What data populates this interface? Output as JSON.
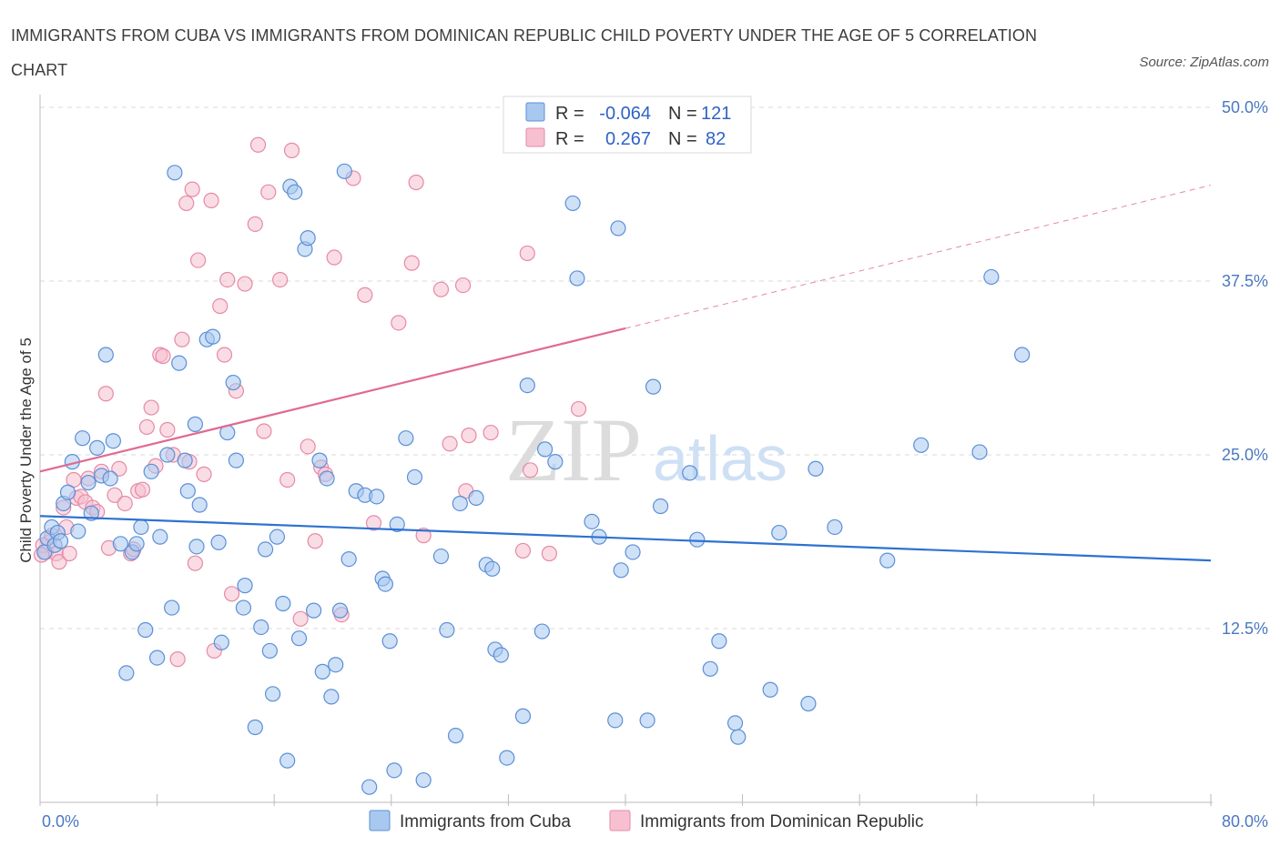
{
  "header": {
    "title": "IMMIGRANTS FROM CUBA VS IMMIGRANTS FROM DOMINICAN REPUBLIC CHILD POVERTY UNDER THE AGE OF 5 CORRELATION CHART",
    "source": "Source: ZipAtlas.com"
  },
  "watermark": {
    "part1": "ZIP",
    "part2": "atlas"
  },
  "colors": {
    "cuba_fill": "#a8c8f0",
    "cuba_stroke": "#5b8fd6",
    "cuba_line": "#2d72d2",
    "dr_fill": "#f6c0d0",
    "dr_stroke": "#e68aa6",
    "dr_line": "#e06a92",
    "grid": "#d9d9d9",
    "tick_text": "#4a78c2"
  },
  "legend": {
    "rows": [
      {
        "r_label": "R =",
        "r_value": "-0.064",
        "n_label": "N =",
        "n_value": "121"
      },
      {
        "r_label": "R =",
        "r_value": "0.267",
        "n_label": "N =",
        "n_value": "82"
      }
    ]
  },
  "bottom_legend": {
    "series1": "Immigrants from Cuba",
    "series2": "Immigrants from Dominican Republic"
  },
  "chart_data": {
    "type": "scatter",
    "ylabel": "Child Poverty Under the Age of 5",
    "xlim": [
      0,
      80
    ],
    "ylim": [
      0,
      50
    ],
    "y_ticks": [
      12.5,
      25.0,
      37.5,
      50.0
    ],
    "y_tick_labels": [
      "12.5%",
      "25.0%",
      "37.5%",
      "50.0%"
    ],
    "x_tick_labels": [
      "0.0%",
      "80.0%"
    ],
    "grid": true,
    "legend_position": "top-center",
    "series": [
      {
        "name": "Immigrants from Cuba",
        "r": -0.064,
        "n": 121,
        "trend": {
          "x": [
            0,
            80
          ],
          "y": [
            20.6,
            17.4
          ],
          "dashed_from": null
        },
        "points": [
          [
            0.3,
            18.0
          ],
          [
            0.5,
            19.0
          ],
          [
            0.8,
            19.8
          ],
          [
            1.0,
            18.5
          ],
          [
            1.2,
            19.4
          ],
          [
            1.4,
            18.8
          ],
          [
            1.6,
            21.5
          ],
          [
            1.9,
            22.3
          ],
          [
            2.2,
            24.5
          ],
          [
            2.6,
            19.5
          ],
          [
            2.9,
            26.2
          ],
          [
            3.3,
            23.0
          ],
          [
            3.5,
            20.8
          ],
          [
            3.9,
            25.5
          ],
          [
            4.2,
            23.5
          ],
          [
            4.5,
            32.2
          ],
          [
            4.8,
            23.3
          ],
          [
            5.0,
            26.0
          ],
          [
            5.5,
            18.6
          ],
          [
            5.9,
            9.3
          ],
          [
            6.3,
            18.0
          ],
          [
            6.6,
            18.6
          ],
          [
            6.9,
            19.8
          ],
          [
            7.2,
            12.4
          ],
          [
            7.6,
            23.8
          ],
          [
            8.0,
            10.4
          ],
          [
            8.2,
            19.1
          ],
          [
            8.7,
            25.0
          ],
          [
            9.0,
            14.0
          ],
          [
            9.2,
            45.3
          ],
          [
            9.5,
            31.6
          ],
          [
            9.9,
            24.6
          ],
          [
            10.1,
            22.4
          ],
          [
            10.6,
            27.2
          ],
          [
            10.9,
            21.4
          ],
          [
            10.7,
            18.4
          ],
          [
            11.4,
            33.3
          ],
          [
            11.8,
            33.5
          ],
          [
            12.2,
            18.7
          ],
          [
            12.4,
            11.5
          ],
          [
            12.8,
            26.6
          ],
          [
            13.2,
            30.2
          ],
          [
            13.4,
            24.6
          ],
          [
            13.9,
            14.0
          ],
          [
            14.0,
            15.6
          ],
          [
            14.7,
            5.4
          ],
          [
            15.1,
            12.6
          ],
          [
            15.4,
            18.2
          ],
          [
            15.7,
            10.9
          ],
          [
            15.9,
            7.8
          ],
          [
            16.2,
            19.1
          ],
          [
            16.6,
            14.3
          ],
          [
            16.9,
            3.0
          ],
          [
            17.1,
            44.3
          ],
          [
            17.4,
            43.9
          ],
          [
            17.7,
            11.8
          ],
          [
            18.1,
            39.8
          ],
          [
            18.3,
            40.6
          ],
          [
            18.7,
            13.8
          ],
          [
            19.1,
            24.6
          ],
          [
            19.3,
            9.4
          ],
          [
            19.6,
            23.3
          ],
          [
            19.9,
            7.6
          ],
          [
            20.2,
            9.9
          ],
          [
            20.5,
            13.8
          ],
          [
            20.8,
            45.4
          ],
          [
            21.1,
            17.5
          ],
          [
            21.6,
            22.4
          ],
          [
            22.2,
            22.1
          ],
          [
            22.5,
            1.1
          ],
          [
            23.0,
            22.0
          ],
          [
            23.4,
            16.1
          ],
          [
            23.6,
            15.7
          ],
          [
            23.9,
            11.6
          ],
          [
            24.2,
            2.3
          ],
          [
            24.4,
            20.0
          ],
          [
            25.0,
            26.2
          ],
          [
            25.6,
            23.4
          ],
          [
            26.2,
            1.6
          ],
          [
            27.4,
            17.7
          ],
          [
            27.8,
            12.4
          ],
          [
            28.4,
            4.8
          ],
          [
            28.7,
            21.5
          ],
          [
            29.8,
            21.9
          ],
          [
            30.5,
            17.1
          ],
          [
            30.9,
            16.8
          ],
          [
            31.1,
            11.0
          ],
          [
            31.5,
            10.6
          ],
          [
            31.9,
            3.2
          ],
          [
            33.0,
            6.2
          ],
          [
            33.3,
            30.0
          ],
          [
            34.3,
            12.3
          ],
          [
            34.5,
            25.4
          ],
          [
            35.2,
            24.5
          ],
          [
            36.4,
            43.1
          ],
          [
            36.7,
            37.7
          ],
          [
            37.7,
            20.2
          ],
          [
            38.2,
            19.1
          ],
          [
            39.3,
            5.9
          ],
          [
            39.5,
            41.3
          ],
          [
            39.7,
            16.7
          ],
          [
            40.5,
            18.0
          ],
          [
            41.5,
            5.9
          ],
          [
            41.9,
            29.9
          ],
          [
            42.4,
            21.3
          ],
          [
            44.4,
            23.7
          ],
          [
            44.9,
            18.9
          ],
          [
            45.8,
            9.6
          ],
          [
            46.4,
            11.6
          ],
          [
            47.5,
            5.7
          ],
          [
            47.7,
            4.7
          ],
          [
            49.9,
            8.1
          ],
          [
            50.5,
            19.4
          ],
          [
            52.5,
            7.1
          ],
          [
            53.0,
            24.0
          ],
          [
            54.3,
            19.8
          ],
          [
            57.9,
            17.4
          ],
          [
            60.2,
            25.7
          ],
          [
            64.2,
            25.2
          ],
          [
            65.0,
            37.8
          ],
          [
            67.1,
            32.2
          ]
        ]
      },
      {
        "name": "Immigrants from Dominican Republic",
        "r": 0.267,
        "n": 82,
        "trend": {
          "x": [
            0,
            80
          ],
          "y": [
            23.8,
            44.4
          ],
          "dashed_from": 40
        },
        "points": [
          [
            0.4,
            18.0
          ],
          [
            0.6,
            18.7
          ],
          [
            0.8,
            19.2
          ],
          [
            1.1,
            17.9
          ],
          [
            1.3,
            17.3
          ],
          [
            1.6,
            21.2
          ],
          [
            1.8,
            19.8
          ],
          [
            2.0,
            17.9
          ],
          [
            2.3,
            23.2
          ],
          [
            2.5,
            21.9
          ],
          [
            2.8,
            22.0
          ],
          [
            3.1,
            21.6
          ],
          [
            3.3,
            23.3
          ],
          [
            3.6,
            21.2
          ],
          [
            3.9,
            20.9
          ],
          [
            4.2,
            23.8
          ],
          [
            4.5,
            29.4
          ],
          [
            4.7,
            18.3
          ],
          [
            5.1,
            22.1
          ],
          [
            5.4,
            24.0
          ],
          [
            5.8,
            21.5
          ],
          [
            6.2,
            17.9
          ],
          [
            6.4,
            18.2
          ],
          [
            6.7,
            22.4
          ],
          [
            7.0,
            22.5
          ],
          [
            7.3,
            27.0
          ],
          [
            7.6,
            28.4
          ],
          [
            7.9,
            24.2
          ],
          [
            8.2,
            32.2
          ],
          [
            8.4,
            32.1
          ],
          [
            8.7,
            26.8
          ],
          [
            9.1,
            25.0
          ],
          [
            9.4,
            10.3
          ],
          [
            9.7,
            33.3
          ],
          [
            10.0,
            43.1
          ],
          [
            10.2,
            24.5
          ],
          [
            10.4,
            44.1
          ],
          [
            10.6,
            17.2
          ],
          [
            10.8,
            39.0
          ],
          [
            11.2,
            23.6
          ],
          [
            11.7,
            43.3
          ],
          [
            11.9,
            10.9
          ],
          [
            12.3,
            35.7
          ],
          [
            12.6,
            32.2
          ],
          [
            12.8,
            37.6
          ],
          [
            13.1,
            15.0
          ],
          [
            13.4,
            29.6
          ],
          [
            14.0,
            37.3
          ],
          [
            14.7,
            41.6
          ],
          [
            14.9,
            47.3
          ],
          [
            15.3,
            26.7
          ],
          [
            15.6,
            43.9
          ],
          [
            16.4,
            37.6
          ],
          [
            16.9,
            23.2
          ],
          [
            17.2,
            46.9
          ],
          [
            17.8,
            13.2
          ],
          [
            18.3,
            25.6
          ],
          [
            18.8,
            18.8
          ],
          [
            19.2,
            24.1
          ],
          [
            19.5,
            23.6
          ],
          [
            20.1,
            39.2
          ],
          [
            20.6,
            13.5
          ],
          [
            21.4,
            44.9
          ],
          [
            22.2,
            36.5
          ],
          [
            22.8,
            20.1
          ],
          [
            24.5,
            34.5
          ],
          [
            25.4,
            38.8
          ],
          [
            25.7,
            44.6
          ],
          [
            26.2,
            19.2
          ],
          [
            27.4,
            36.9
          ],
          [
            28.0,
            25.8
          ],
          [
            28.9,
            37.2
          ],
          [
            29.1,
            22.4
          ],
          [
            29.3,
            26.4
          ],
          [
            30.8,
            26.6
          ],
          [
            33.0,
            18.1
          ],
          [
            33.3,
            39.5
          ],
          [
            33.5,
            23.9
          ],
          [
            34.8,
            17.9
          ],
          [
            36.8,
            28.3
          ],
          [
            0.2,
            18.5
          ],
          [
            0.1,
            17.8
          ]
        ]
      }
    ]
  }
}
